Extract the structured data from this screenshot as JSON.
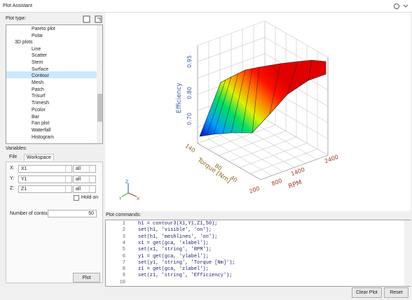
{
  "window": {
    "title": "Plot Assistant"
  },
  "plot_type": {
    "label": "Plot type:",
    "pre_items": [
      "Pareto plot",
      "Polar"
    ],
    "group": {
      "label": "3D plots",
      "items": [
        "Line",
        "Scatter",
        "Stem",
        "Surface",
        "Contour",
        "Mesh",
        "Patch",
        "Trisurf",
        "Trimesh",
        "Pcolor",
        "Bar",
        "Fan plot",
        "Waterfall",
        "Histogram"
      ]
    }
  },
  "variables": {
    "label": "Variables:",
    "tabs": [
      "File",
      "Workspace"
    ],
    "rows": [
      {
        "axis": "X:",
        "variable": "X1",
        "range": "all"
      },
      {
        "axis": "Y:",
        "variable": "Y1",
        "range": "all"
      },
      {
        "axis": "Z:",
        "variable": "Z1",
        "range": "all"
      }
    ],
    "hold_on": "Hold on",
    "contours": {
      "label": "Number of contours:",
      "value": "50"
    },
    "plot_button": "Plot"
  },
  "plot": {
    "z_label": "Efficiency",
    "y_label": "Torque [Nm]",
    "x_label": "RPM",
    "z_ticks": [
      "0.95",
      "0.80",
      "0.70"
    ],
    "y_ticks": [
      "140",
      "80",
      "40"
    ],
    "x_ticks": [
      "200",
      "800",
      "1400",
      "2400"
    ],
    "axes_icon": [
      "Z",
      "Y",
      "X"
    ]
  },
  "commands": {
    "label": "Plot commands:",
    "lines": [
      {
        "number": "1",
        "code": "h1 = contour3(X1,Y1,Z1,50);"
      },
      {
        "number": "2",
        "code": "set(h1, 'visible', 'on');"
      },
      {
        "number": "3",
        "code": "set(h1, 'meshlines', 'on');"
      },
      {
        "number": "4",
        "code": "x1 = get(gca, 'xlabel');"
      },
      {
        "number": "5",
        "code": "set(x1, 'string', 'RPM');"
      },
      {
        "number": "6",
        "code": "y1 = get(gca, 'ylabel');"
      },
      {
        "number": "7",
        "code": "set(y1, 'string', 'Torque [Nm]');"
      },
      {
        "number": "8",
        "code": "z1 = get(gca, 'zlabel');"
      },
      {
        "number": "9",
        "code": "set(z1, 'string', 'Efficiency');"
      },
      {
        "number": "10"
      }
    ]
  },
  "buttons": {
    "clear": "Clear Plot",
    "reset": "Reset"
  }
}
